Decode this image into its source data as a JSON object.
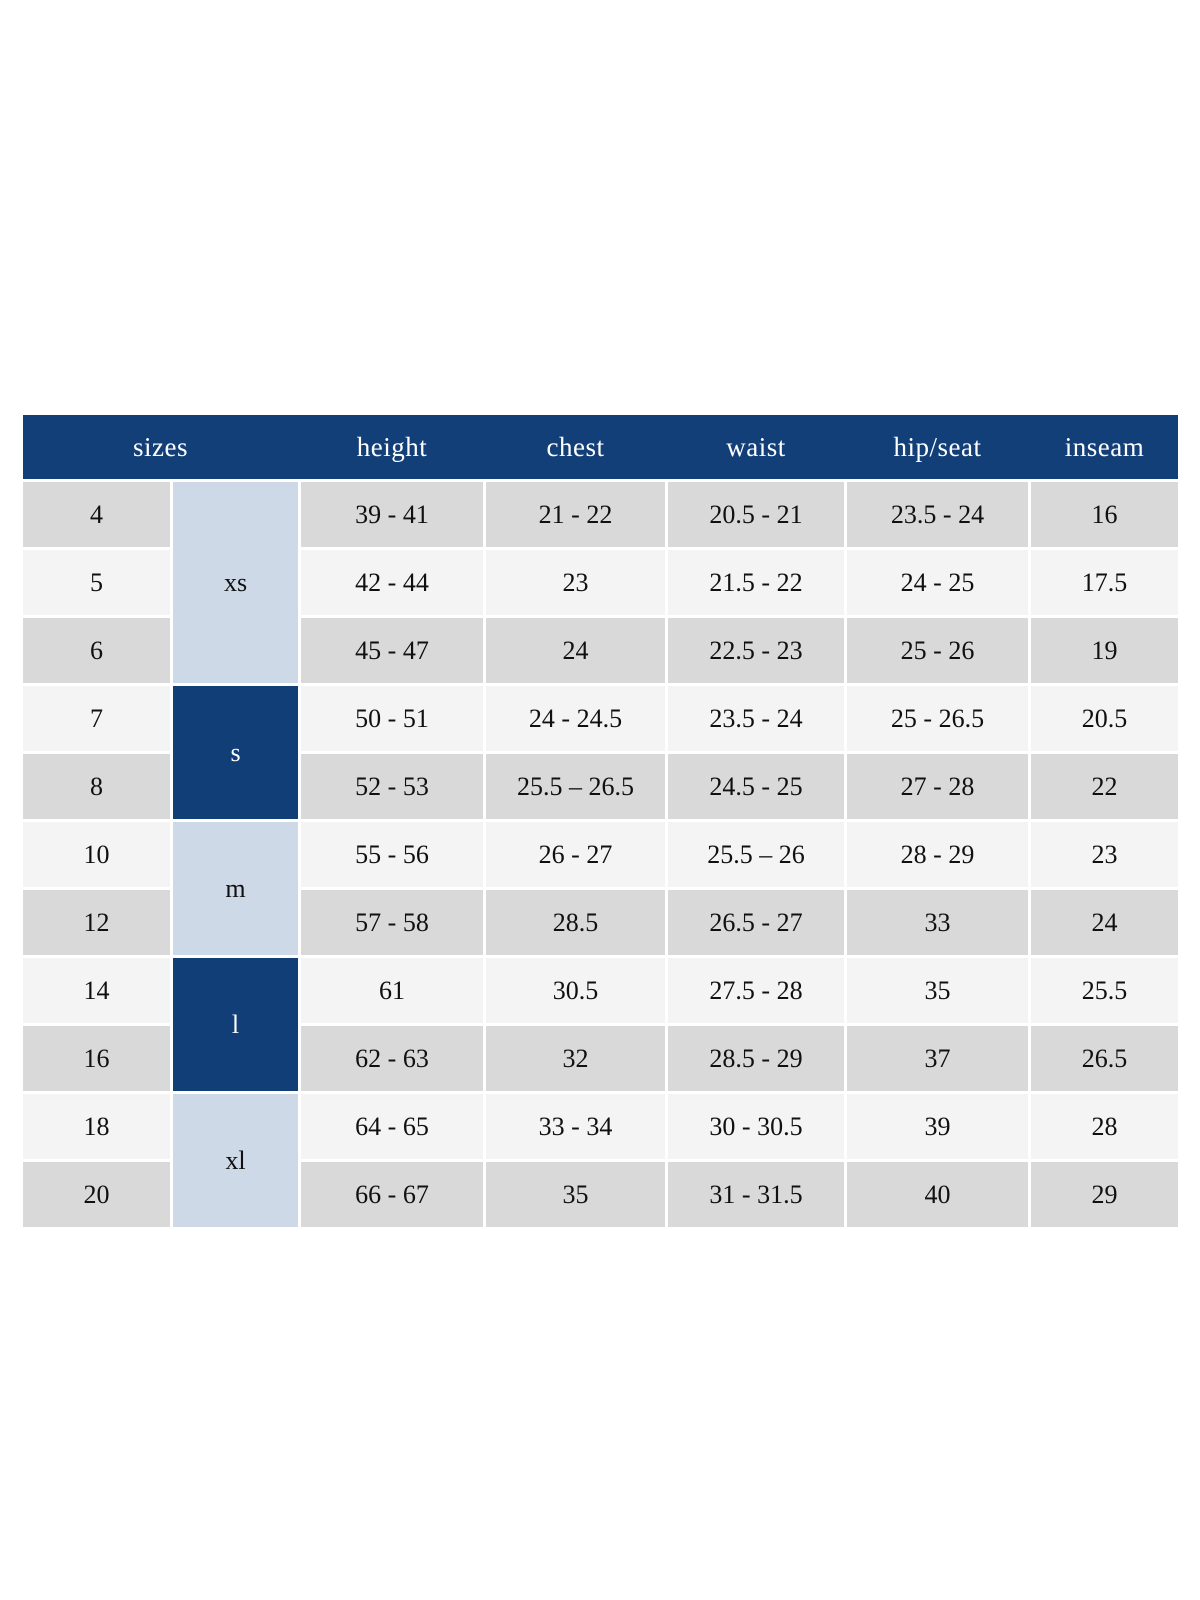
{
  "colors": {
    "header_navy": "#133f79",
    "group_navy": "#123e77",
    "group_light_blue": "#cdd9e7",
    "row_gray": "#d9d9d9",
    "row_light": "#f4f4f4",
    "background": "#ffffff",
    "header_text": "#ffffff",
    "body_text": "#101010"
  },
  "header": {
    "sizes": "sizes",
    "columns": [
      "height",
      "chest",
      "waist",
      "hip/seat",
      "inseam"
    ]
  },
  "groups": [
    {
      "label": "xs",
      "span": 3
    },
    {
      "label": "s",
      "span": 2
    },
    {
      "label": "m",
      "span": 2
    },
    {
      "label": "l",
      "span": 2
    },
    {
      "label": "xl",
      "span": 2
    }
  ],
  "rows": [
    {
      "size": "4",
      "group": "xs",
      "height": "39 - 41",
      "chest": "21 - 22",
      "waist": "20.5 - 21",
      "hip_seat": "23.5 - 24",
      "inseam": "16"
    },
    {
      "size": "5",
      "group": "xs",
      "height": "42 - 44",
      "chest": "23",
      "waist": "21.5 - 22",
      "hip_seat": "24 - 25",
      "inseam": "17.5"
    },
    {
      "size": "6",
      "group": "xs",
      "height": "45 - 47",
      "chest": "24",
      "waist": "22.5 - 23",
      "hip_seat": "25 - 26",
      "inseam": "19"
    },
    {
      "size": "7",
      "group": "s",
      "height": "50 - 51",
      "chest": "24 - 24.5",
      "waist": "23.5 - 24",
      "hip_seat": "25 - 26.5",
      "inseam": "20.5"
    },
    {
      "size": "8",
      "group": "s",
      "height": "52 - 53",
      "chest": "25.5 – 26.5",
      "waist": "24.5 - 25",
      "hip_seat": "27 - 28",
      "inseam": "22"
    },
    {
      "size": "10",
      "group": "m",
      "height": "55 - 56",
      "chest": "26 - 27",
      "waist": "25.5 – 26",
      "hip_seat": "28 - 29",
      "inseam": "23"
    },
    {
      "size": "12",
      "group": "m",
      "height": "57 - 58",
      "chest": "28.5",
      "waist": "26.5 - 27",
      "hip_seat": "33",
      "inseam": "24"
    },
    {
      "size": "14",
      "group": "l",
      "height": "61",
      "chest": "30.5",
      "waist": "27.5 - 28",
      "hip_seat": "35",
      "inseam": "25.5"
    },
    {
      "size": "16",
      "group": "l",
      "height": "62 - 63",
      "chest": "32",
      "waist": "28.5 - 29",
      "hip_seat": "37",
      "inseam": "26.5"
    },
    {
      "size": "18",
      "group": "xl",
      "height": "64 - 65",
      "chest": "33 - 34",
      "waist": "30 - 30.5",
      "hip_seat": "39",
      "inseam": "28"
    },
    {
      "size": "20",
      "group": "xl",
      "height": "66 - 67",
      "chest": "35",
      "waist": "31 - 31.5",
      "hip_seat": "40",
      "inseam": "29"
    }
  ]
}
